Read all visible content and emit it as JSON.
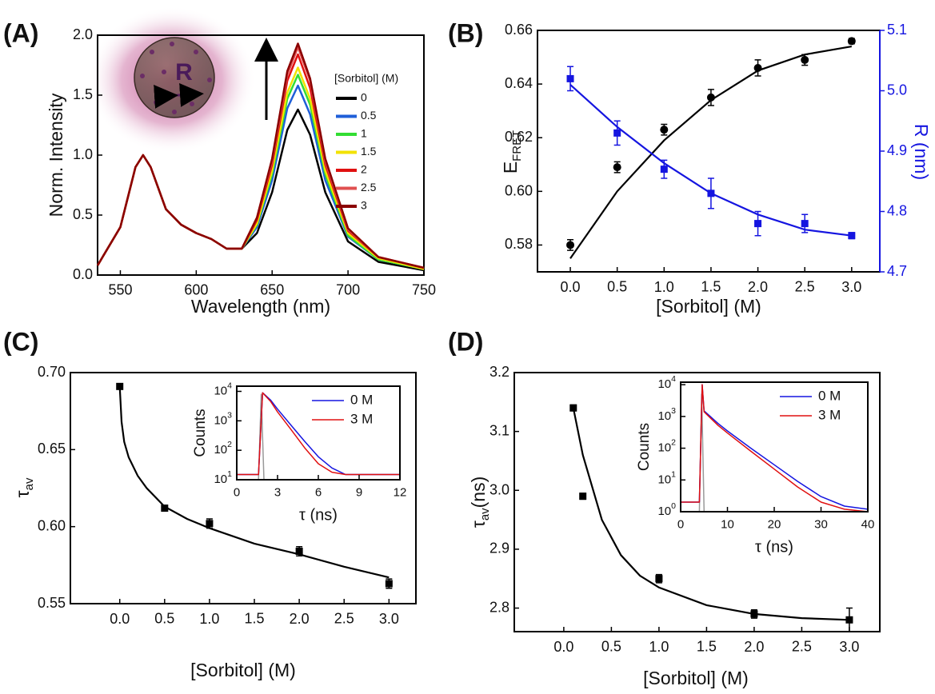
{
  "chart_data": [
    {
      "type": "line",
      "panel": "(A)",
      "xlabel": "Wavelength (nm)",
      "ylabel": "Norm. Intensity",
      "annotation": "R",
      "xlim": [
        535,
        750
      ],
      "ylim": [
        0,
        2.0
      ],
      "xticks": [
        550,
        600,
        650,
        700,
        750
      ],
      "yticks": [
        {
          "value": 0,
          "label": "0.0"
        },
        0.5,
        {
          "value": 1,
          "label": "1.0"
        },
        1.5,
        {
          "value": 2,
          "label": "2.0"
        }
      ],
      "legend_title": "[Sorbitol] (M)",
      "x": [
        535,
        550,
        560,
        565,
        570,
        580,
        590,
        600,
        610,
        620,
        630,
        640,
        650,
        660,
        667,
        675,
        685,
        700,
        720,
        750
      ],
      "series": [
        {
          "name": "0",
          "color": "#000000",
          "values": [
            0.08,
            0.4,
            0.9,
            1.0,
            0.9,
            0.55,
            0.42,
            0.35,
            0.3,
            0.22,
            0.22,
            0.35,
            0.69,
            1.21,
            1.38,
            1.17,
            0.69,
            0.28,
            0.11,
            0.04
          ]
        },
        {
          "name": "0.5",
          "color": "#1f5fd8",
          "values": [
            0.08,
            0.4,
            0.9,
            1.0,
            0.9,
            0.55,
            0.42,
            0.35,
            0.3,
            0.22,
            0.22,
            0.4,
            0.79,
            1.39,
            1.58,
            1.34,
            0.79,
            0.32,
            0.13,
            0.05
          ]
        },
        {
          "name": "1",
          "color": "#33dd33",
          "values": [
            0.08,
            0.4,
            0.9,
            1.0,
            0.9,
            0.55,
            0.42,
            0.35,
            0.3,
            0.22,
            0.22,
            0.42,
            0.84,
            1.47,
            1.67,
            1.42,
            0.84,
            0.33,
            0.13,
            0.05
          ]
        },
        {
          "name": "1.5",
          "color": "#f2e200",
          "values": [
            0.08,
            0.4,
            0.9,
            1.0,
            0.9,
            0.55,
            0.42,
            0.35,
            0.3,
            0.22,
            0.22,
            0.43,
            0.87,
            1.52,
            1.73,
            1.47,
            0.87,
            0.35,
            0.14,
            0.05
          ]
        },
        {
          "name": "2",
          "color": "#e01010",
          "values": [
            0.08,
            0.4,
            0.9,
            1.0,
            0.9,
            0.55,
            0.42,
            0.35,
            0.3,
            0.22,
            0.22,
            0.46,
            0.92,
            1.62,
            1.84,
            1.56,
            0.92,
            0.37,
            0.15,
            0.06
          ]
        },
        {
          "name": "2.5",
          "color": "#e05050",
          "values": [
            0.08,
            0.4,
            0.9,
            1.0,
            0.9,
            0.55,
            0.42,
            0.35,
            0.3,
            0.22,
            0.22,
            0.48,
            0.95,
            1.67,
            1.9,
            1.62,
            0.95,
            0.38,
            0.15,
            0.06
          ]
        },
        {
          "name": "3",
          "color": "#8b0000",
          "values": [
            0.08,
            0.4,
            0.9,
            1.0,
            0.9,
            0.55,
            0.42,
            0.35,
            0.3,
            0.22,
            0.22,
            0.48,
            0.97,
            1.7,
            1.93,
            1.64,
            0.97,
            0.39,
            0.15,
            0.06
          ]
        }
      ]
    },
    {
      "type": "scatter",
      "panel": "(B)",
      "xlabel": "[Sorbitol] (M)",
      "ylabel": "E",
      "ylabel_sub": "FRET",
      "y2label": "R (nm)",
      "xlim": [
        -0.35,
        3.3
      ],
      "ylim": [
        0.57,
        0.66
      ],
      "y2lim": [
        4.7,
        5.1
      ],
      "y2color": "#1515e0",
      "xticks": [
        {
          "value": 0,
          "label": "0.0"
        },
        0.5,
        {
          "value": 1,
          "label": "1.0"
        },
        1.5,
        {
          "value": 2,
          "label": "2.0"
        },
        2.5,
        {
          "value": 3,
          "label": "3.0"
        }
      ],
      "yticks": [
        0.58,
        {
          "value": 0.6,
          "label": "0.60"
        },
        0.62,
        0.64,
        0.66
      ],
      "y2ticks": [
        4.7,
        4.8,
        4.9,
        {
          "value": 5,
          "label": "5.0"
        },
        5.1
      ],
      "x": [
        0,
        0.5,
        1,
        1.5,
        2,
        2.5,
        3
      ],
      "series": [
        {
          "color": "#000000",
          "marker": "circle",
          "values": [
            0.58,
            0.609,
            0.623,
            0.635,
            0.646,
            0.649,
            0.656
          ],
          "errors": [
            0.002,
            0.002,
            0.002,
            0.003,
            0.003,
            0.002,
            0.001
          ],
          "fit": {
            "x": [
              0,
              0.5,
              1,
              1.5,
              2,
              2.5,
              3
            ],
            "values": [
              0.575,
              0.6,
              0.619,
              0.634,
              0.645,
              0.651,
              0.654
            ]
          }
        },
        {
          "color": "#1515e0",
          "marker": "square",
          "axis": "y2",
          "values": [
            5.02,
            4.93,
            4.87,
            4.83,
            4.78,
            4.78,
            4.76
          ],
          "errors": [
            0.02,
            0.02,
            0.015,
            0.025,
            0.02,
            0.015,
            0.005
          ],
          "fit": {
            "x": [
              0,
              0.5,
              1,
              1.5,
              2,
              2.5,
              3
            ],
            "values": [
              5.01,
              4.94,
              4.88,
              4.83,
              4.795,
              4.77,
              4.76
            ]
          }
        }
      ]
    },
    {
      "type": "scatter",
      "panel": "(C)",
      "xlabel": "[Sorbitol] (M)",
      "ylabel": "τ",
      "ylabel_sub": "av",
      "xlim": [
        -0.55,
        3.3
      ],
      "ylim": [
        0.55,
        0.7
      ],
      "xticks": [
        {
          "value": 0,
          "label": "0.0"
        },
        0.5,
        {
          "value": 1,
          "label": "1.0"
        },
        1.5,
        {
          "value": 2,
          "label": "2.0"
        },
        2.5,
        {
          "value": 3,
          "label": "3.0"
        }
      ],
      "yticks": [
        0.55,
        {
          "value": 0.6,
          "label": "0.60"
        },
        0.65,
        {
          "value": 0.7,
          "label": "0.70"
        }
      ],
      "x": [
        0,
        0.5,
        1,
        2,
        3
      ],
      "series": [
        {
          "color": "#000000",
          "marker": "square",
          "values": [
            0.691,
            0.612,
            0.602,
            0.584,
            0.563
          ],
          "errors": [
            0.001,
            0.001,
            0.003,
            0.003,
            0.003
          ],
          "fit": {
            "x": [
              0,
              0.02,
              0.05,
              0.1,
              0.2,
              0.3,
              0.5,
              0.75,
              1,
              1.5,
              2,
              2.5,
              3
            ],
            "values": [
              0.691,
              0.668,
              0.655,
              0.645,
              0.633,
              0.625,
              0.613,
              0.605,
              0.599,
              0.589,
              0.582,
              0.574,
              0.567
            ]
          }
        }
      ],
      "inset": {
        "type": "line",
        "log_y": true,
        "xlabel": "τ (ns)",
        "ylabel": "Counts",
        "xlim": [
          0,
          12
        ],
        "ylim": [
          10,
          15000
        ],
        "xticks": [
          0,
          3,
          6,
          9,
          12
        ],
        "yticks": [
          {
            "value": 10,
            "label": "10",
            "sup": "1"
          },
          {
            "value": 100,
            "label": "10",
            "sup": "2"
          },
          {
            "value": 1000,
            "label": "10",
            "sup": "3"
          },
          {
            "value": 10000,
            "label": "10",
            "sup": "4"
          }
        ],
        "series": [
          {
            "color": "#999999",
            "x": [
              0,
              1.6,
              1.8,
              2.0,
              2.2,
              12
            ],
            "values": [
              10,
              10,
              8000,
              10,
              10,
              10
            ]
          },
          {
            "name": "0 M",
            "color": "#1515e0",
            "x": [
              0,
              1.6,
              1.9,
              2.5,
              3,
              4,
              5,
              6,
              7,
              8,
              12
            ],
            "values": [
              15,
              15,
              9000,
              5000,
              2500,
              700,
              200,
              60,
              25,
              15,
              15
            ]
          },
          {
            "name": "3 M",
            "color": "#e01010",
            "x": [
              0,
              1.6,
              1.9,
              2.5,
              3,
              4,
              5,
              6,
              7,
              8,
              12
            ],
            "values": [
              15,
              15,
              9000,
              4500,
              2000,
              500,
              120,
              35,
              18,
              15,
              15
            ]
          }
        ]
      }
    },
    {
      "type": "scatter",
      "panel": "(D)",
      "xlabel": "[Sorbitol] (M)",
      "ylabel": "τ",
      "ylabel_sub": "av",
      "ylabel_tail": "(ns)",
      "xlim": [
        -0.52,
        3.32
      ],
      "ylim": [
        2.76,
        3.2
      ],
      "xticks": [
        {
          "value": 0,
          "label": "0.0"
        },
        0.5,
        {
          "value": 1,
          "label": "1.0"
        },
        1.5,
        {
          "value": 2,
          "label": "2.0"
        },
        2.5,
        {
          "value": 3,
          "label": "3.0"
        }
      ],
      "yticks": [
        2.8,
        2.9,
        {
          "value": 3,
          "label": "3.0"
        },
        3.1,
        3.2
      ],
      "x": [
        0.1,
        0.2,
        1,
        2,
        3
      ],
      "series": [
        {
          "color": "#000000",
          "marker": "square",
          "values": [
            3.14,
            2.99,
            2.85,
            2.79,
            2.78
          ],
          "errors": [
            0.005,
            0.005,
            0.007,
            0.007,
            0.02
          ],
          "fit": {
            "x": [
              0.1,
              0.2,
              0.4,
              0.6,
              0.8,
              1,
              1.5,
              2,
              2.5,
              3
            ],
            "values": [
              3.14,
              3.06,
              2.95,
              2.89,
              2.855,
              2.835,
              2.805,
              2.79,
              2.783,
              2.78
            ]
          }
        }
      ],
      "inset": {
        "type": "line",
        "log_y": true,
        "xlabel": "τ (ns)",
        "ylabel": "Counts",
        "xlim": [
          0,
          40
        ],
        "ylim": [
          1,
          12000
        ],
        "xticks": [
          0,
          10,
          20,
          30,
          40
        ],
        "yticks": [
          {
            "value": 1,
            "label": "10",
            "sup": "0"
          },
          {
            "value": 10,
            "label": "10",
            "sup": "1"
          },
          {
            "value": 100,
            "label": "10",
            "sup": "2"
          },
          {
            "value": 1000,
            "label": "10",
            "sup": "3"
          },
          {
            "value": 10000,
            "label": "10",
            "sup": "4"
          }
        ],
        "series": [
          {
            "color": "#999999",
            "x": [
              0,
              4,
              4.5,
              5,
              40
            ],
            "values": [
              1,
              1,
              5000,
              1,
              1
            ]
          },
          {
            "name": "0 M",
            "color": "#1515e0",
            "x": [
              0,
              4,
              4.6,
              5,
              8,
              10,
              15,
              20,
              25,
              30,
              35,
              40
            ],
            "values": [
              2,
              2,
              10000,
              1500,
              600,
              350,
              100,
              30,
              9,
              3,
              1.5,
              1.2
            ]
          },
          {
            "name": "3 M",
            "color": "#e01010",
            "x": [
              0,
              4,
              4.6,
              5,
              8,
              10,
              15,
              20,
              25,
              30,
              35,
              40
            ],
            "values": [
              2,
              2,
              10000,
              1400,
              520,
              300,
              80,
              22,
              6,
              2,
              1.2,
              1
            ]
          }
        ]
      }
    }
  ]
}
